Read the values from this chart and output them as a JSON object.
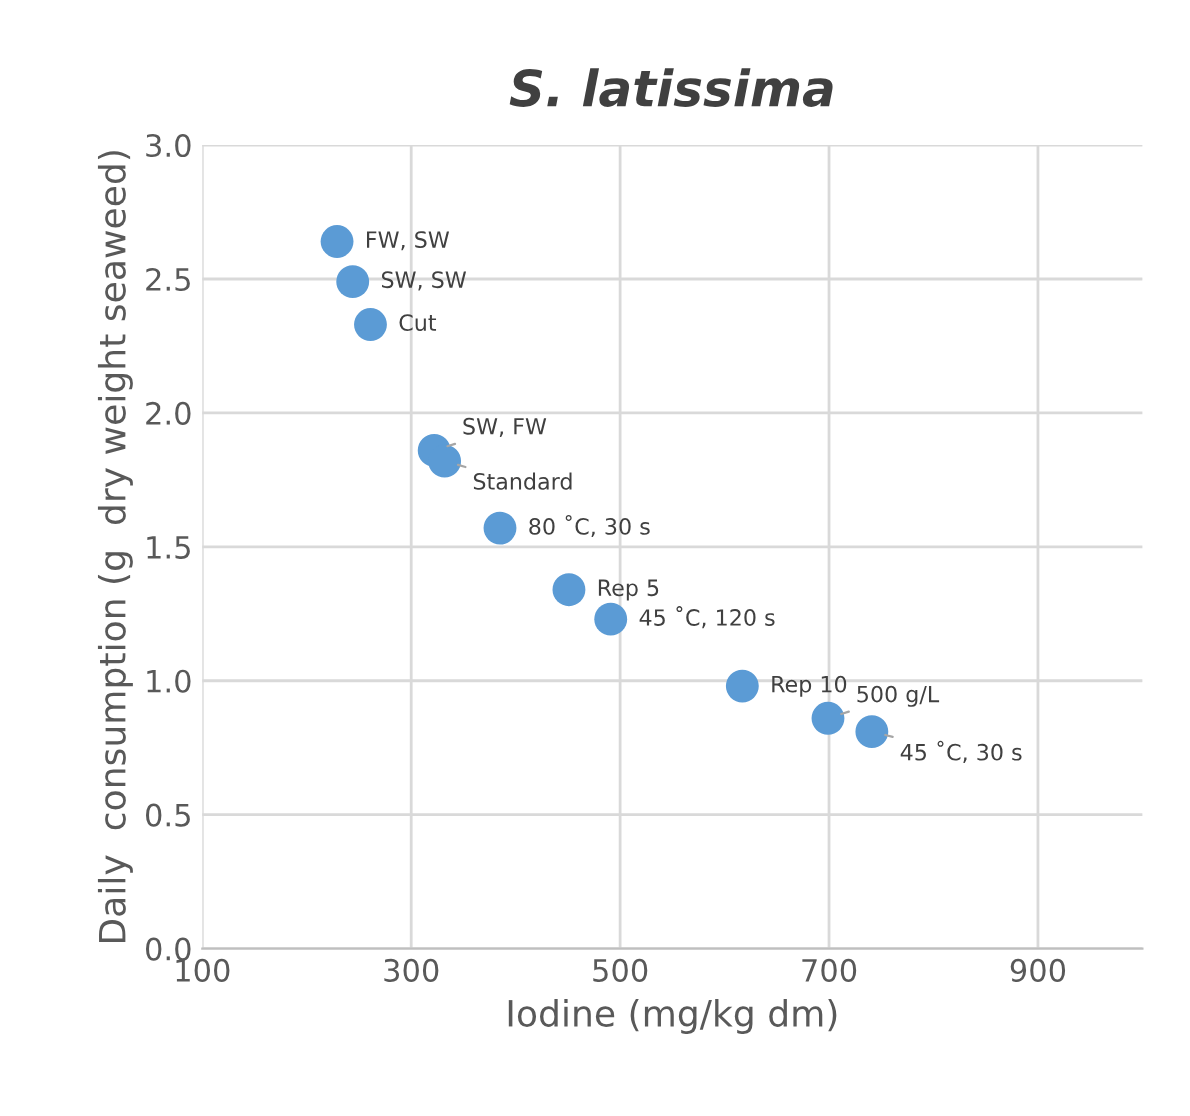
{
  "chart_data": {
    "type": "scatter",
    "title": "S. latissima",
    "xlabel": "Iodine (mg/kg dm)",
    "ylabel": "Daily  consumption (g  dry weight seaweed)",
    "x": [
      229,
      244,
      261,
      322,
      332,
      385,
      451,
      491,
      617,
      699,
      741
    ],
    "series": [
      {
        "color": "#5b9bd5",
        "values": [
          2.64,
          2.49,
          2.33,
          1.86,
          1.82,
          1.57,
          1.34,
          1.23,
          0.98,
          0.86,
          0.81
        ]
      }
    ],
    "annotations": [
      {
        "text": "FW, SW",
        "x": 229,
        "y": 2.64
      },
      {
        "text": "SW, SW",
        "x": 244,
        "y": 2.49
      },
      {
        "text": "Cut",
        "x": 261,
        "y": 2.33
      },
      {
        "text": "SW, FW",
        "x": 322,
        "y": 1.86
      },
      {
        "text": "Standard",
        "x": 332,
        "y": 1.82
      },
      {
        "text": "80 ˚C, 30 s",
        "x": 385,
        "y": 1.57
      },
      {
        "text": "Rep 5",
        "x": 451,
        "y": 1.34
      },
      {
        "text": "45 ˚C, 120 s",
        "x": 491,
        "y": 1.23
      },
      {
        "text": "Rep 10",
        "x": 617,
        "y": 0.98
      },
      {
        "text": "500 g/L",
        "x": 699,
        "y": 0.86
      },
      {
        "text": "45 ˚C, 30 s",
        "x": 741,
        "y": 0.81
      }
    ],
    "xlim": [
      100,
      1000
    ],
    "xticks": [
      100,
      300,
      500,
      700,
      900
    ],
    "ylim": [
      0,
      3
    ],
    "yticks": [
      {
        "value": 0,
        "label": "0.0"
      },
      {
        "value": 0.5,
        "label": "0.5"
      },
      {
        "value": 1,
        "label": "1.0"
      },
      {
        "value": 1.5,
        "label": "1.5"
      },
      {
        "value": 2,
        "label": "2.0"
      },
      {
        "value": 2.5,
        "label": "2.5"
      },
      {
        "value": 3,
        "label": "3.0"
      }
    ],
    "grid": true,
    "marker": "circle"
  }
}
